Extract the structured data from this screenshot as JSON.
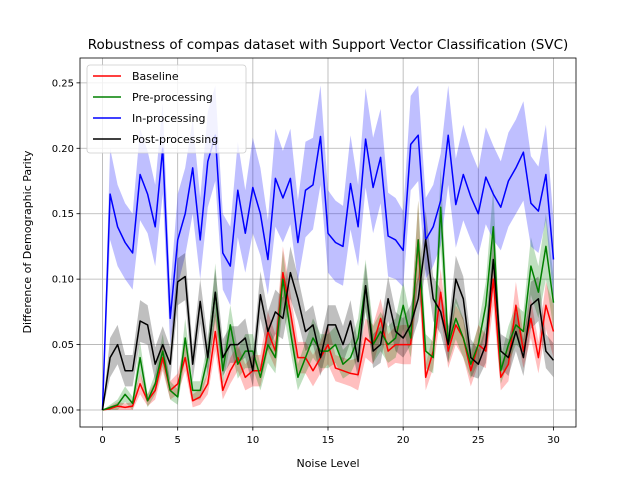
{
  "chart_data": {
    "type": "line",
    "title": "Robustness of compas dataset with Support Vector Classification (SVC)",
    "xlabel": "Noise Level",
    "ylabel": "Difference of Demographic Parity",
    "xlim": [
      -1.5,
      31.5
    ],
    "ylim": [
      -0.013,
      0.269
    ],
    "xticks": [
      0,
      5,
      10,
      15,
      20,
      25,
      30
    ],
    "xtick_labels": [
      "0",
      "5",
      "10",
      "15",
      "20",
      "25",
      "30"
    ],
    "yticks": [
      0.0,
      0.05,
      0.1,
      0.15,
      0.2,
      0.25
    ],
    "ytick_labels": [
      "0.00",
      "0.05",
      "0.10",
      "0.15",
      "0.20",
      "0.25"
    ],
    "grid": true,
    "legend_position": "top-left",
    "x": [
      0,
      0.5,
      1,
      1.5,
      2,
      2.5,
      3,
      3.5,
      4,
      4.5,
      5,
      5.5,
      6,
      6.5,
      7,
      7.5,
      8,
      8.5,
      9,
      9.5,
      10,
      10.5,
      11,
      11.5,
      12,
      12.5,
      13,
      13.5,
      14,
      14.5,
      15,
      15.5,
      16,
      16.5,
      17,
      17.5,
      18,
      18.5,
      19,
      19.5,
      20,
      20.5,
      21,
      21.5,
      22,
      22.5,
      23,
      23.5,
      24,
      24.5,
      25,
      25.5,
      26,
      26.5,
      27,
      27.5,
      28,
      28.5,
      29,
      29.5,
      30
    ],
    "series": [
      {
        "name": "Baseline",
        "color": "#ff0000",
        "values": [
          0.0,
          0.001,
          0.003,
          0.002,
          0.003,
          0.02,
          0.007,
          0.015,
          0.04,
          0.015,
          0.02,
          0.04,
          0.007,
          0.01,
          0.02,
          0.06,
          0.015,
          0.03,
          0.04,
          0.025,
          0.03,
          0.03,
          0.06,
          0.045,
          0.105,
          0.075,
          0.04,
          0.04,
          0.03,
          0.04,
          0.05,
          0.032,
          0.03,
          0.028,
          0.027,
          0.055,
          0.05,
          0.07,
          0.045,
          0.05,
          0.05,
          0.05,
          0.13,
          0.025,
          0.045,
          0.09,
          0.045,
          0.065,
          0.055,
          0.03,
          0.05,
          0.045,
          0.1,
          0.025,
          0.035,
          0.08,
          0.045,
          0.07,
          0.04,
          0.08,
          0.06
        ],
        "lower": [
          0.0,
          0.0,
          0.0,
          0.0,
          0.0,
          0.012,
          0.003,
          0.008,
          0.03,
          0.008,
          0.012,
          0.03,
          0.002,
          0.004,
          0.012,
          0.045,
          0.008,
          0.02,
          0.03,
          0.015,
          0.018,
          0.018,
          0.045,
          0.032,
          0.085,
          0.06,
          0.028,
          0.028,
          0.018,
          0.028,
          0.035,
          0.022,
          0.02,
          0.018,
          0.015,
          0.04,
          0.035,
          0.055,
          0.032,
          0.036,
          0.035,
          0.035,
          0.1,
          0.015,
          0.032,
          0.072,
          0.032,
          0.05,
          0.04,
          0.018,
          0.035,
          0.032,
          0.08,
          0.015,
          0.022,
          0.062,
          0.032,
          0.055,
          0.028,
          0.062,
          0.04
        ],
        "upper": [
          0.0,
          0.003,
          0.006,
          0.005,
          0.006,
          0.028,
          0.012,
          0.022,
          0.05,
          0.022,
          0.028,
          0.05,
          0.012,
          0.016,
          0.028,
          0.075,
          0.022,
          0.04,
          0.05,
          0.035,
          0.042,
          0.042,
          0.075,
          0.058,
          0.125,
          0.09,
          0.052,
          0.052,
          0.042,
          0.052,
          0.065,
          0.042,
          0.04,
          0.038,
          0.04,
          0.07,
          0.065,
          0.085,
          0.058,
          0.064,
          0.065,
          0.065,
          0.16,
          0.035,
          0.058,
          0.108,
          0.058,
          0.08,
          0.07,
          0.042,
          0.065,
          0.058,
          0.12,
          0.035,
          0.048,
          0.098,
          0.058,
          0.085,
          0.052,
          0.098,
          0.08
        ]
      },
      {
        "name": "Pre-processing",
        "color": "#008000",
        "values": [
          0.0,
          0.002,
          0.004,
          0.012,
          0.005,
          0.04,
          0.007,
          0.02,
          0.045,
          0.015,
          0.01,
          0.055,
          0.015,
          0.015,
          0.04,
          0.09,
          0.03,
          0.065,
          0.035,
          0.045,
          0.045,
          0.025,
          0.05,
          0.04,
          0.1,
          0.06,
          0.025,
          0.04,
          0.055,
          0.045,
          0.045,
          0.05,
          0.035,
          0.04,
          0.055,
          0.095,
          0.05,
          0.06,
          0.05,
          0.055,
          0.08,
          0.055,
          0.13,
          0.045,
          0.04,
          0.155,
          0.05,
          0.07,
          0.055,
          0.035,
          0.05,
          0.08,
          0.14,
          0.03,
          0.05,
          0.065,
          0.06,
          0.11,
          0.09,
          0.125,
          0.082
        ],
        "lower": [
          0.0,
          0.0,
          0.0,
          0.006,
          0.0,
          0.028,
          0.002,
          0.012,
          0.033,
          0.008,
          0.004,
          0.04,
          0.008,
          0.008,
          0.028,
          0.068,
          0.02,
          0.05,
          0.024,
          0.032,
          0.032,
          0.015,
          0.036,
          0.028,
          0.078,
          0.045,
          0.015,
          0.028,
          0.04,
          0.032,
          0.032,
          0.036,
          0.024,
          0.028,
          0.04,
          0.075,
          0.036,
          0.045,
          0.036,
          0.04,
          0.062,
          0.04,
          0.1,
          0.032,
          0.028,
          0.125,
          0.036,
          0.054,
          0.04,
          0.024,
          0.036,
          0.062,
          0.11,
          0.02,
          0.036,
          0.05,
          0.045,
          0.088,
          0.07,
          0.1,
          0.062
        ],
        "upper": [
          0.0,
          0.004,
          0.008,
          0.018,
          0.01,
          0.052,
          0.012,
          0.028,
          0.058,
          0.022,
          0.016,
          0.07,
          0.022,
          0.022,
          0.052,
          0.112,
          0.04,
          0.08,
          0.046,
          0.058,
          0.058,
          0.035,
          0.064,
          0.052,
          0.122,
          0.075,
          0.035,
          0.052,
          0.07,
          0.058,
          0.058,
          0.064,
          0.046,
          0.052,
          0.07,
          0.115,
          0.064,
          0.075,
          0.064,
          0.07,
          0.098,
          0.07,
          0.16,
          0.058,
          0.052,
          0.185,
          0.064,
          0.086,
          0.07,
          0.046,
          0.064,
          0.098,
          0.17,
          0.04,
          0.064,
          0.08,
          0.075,
          0.132,
          0.11,
          0.15,
          0.102
        ]
      },
      {
        "name": "In-processing",
        "color": "#0000ff",
        "values": [
          0.0,
          0.165,
          0.14,
          0.128,
          0.12,
          0.18,
          0.165,
          0.14,
          0.2,
          0.07,
          0.13,
          0.15,
          0.185,
          0.13,
          0.19,
          0.21,
          0.12,
          0.11,
          0.168,
          0.135,
          0.17,
          0.15,
          0.115,
          0.177,
          0.162,
          0.177,
          0.128,
          0.168,
          0.172,
          0.209,
          0.135,
          0.128,
          0.125,
          0.173,
          0.14,
          0.207,
          0.17,
          0.193,
          0.133,
          0.13,
          0.122,
          0.203,
          0.21,
          0.13,
          0.14,
          0.16,
          0.21,
          0.157,
          0.18,
          0.163,
          0.15,
          0.178,
          0.165,
          0.155,
          0.175,
          0.185,
          0.197,
          0.158,
          0.152,
          0.18,
          0.115
        ],
        "lower": [
          0.0,
          0.13,
          0.11,
          0.1,
          0.092,
          0.145,
          0.135,
          0.11,
          0.165,
          0.05,
          0.095,
          0.118,
          0.15,
          0.1,
          0.155,
          0.175,
          0.092,
          0.08,
          0.132,
          0.105,
          0.135,
          0.118,
          0.088,
          0.14,
          0.128,
          0.142,
          0.098,
          0.132,
          0.138,
          0.172,
          0.105,
          0.098,
          0.095,
          0.138,
          0.11,
          0.17,
          0.135,
          0.158,
          0.102,
          0.1,
          0.094,
          0.168,
          0.175,
          0.1,
          0.11,
          0.126,
          0.172,
          0.124,
          0.145,
          0.13,
          0.118,
          0.142,
          0.13,
          0.122,
          0.14,
          0.15,
          0.16,
          0.125,
          0.12,
          0.145,
          0.085
        ],
        "upper": [
          0.0,
          0.2,
          0.172,
          0.158,
          0.15,
          0.215,
          0.198,
          0.172,
          0.235,
          0.092,
          0.165,
          0.185,
          0.222,
          0.162,
          0.228,
          0.248,
          0.15,
          0.14,
          0.205,
          0.168,
          0.208,
          0.185,
          0.145,
          0.215,
          0.198,
          0.215,
          0.16,
          0.205,
          0.208,
          0.248,
          0.168,
          0.16,
          0.156,
          0.21,
          0.172,
          0.246,
          0.208,
          0.23,
          0.166,
          0.162,
          0.152,
          0.24,
          0.248,
          0.162,
          0.172,
          0.196,
          0.248,
          0.192,
          0.218,
          0.198,
          0.184,
          0.216,
          0.202,
          0.19,
          0.212,
          0.222,
          0.236,
          0.194,
          0.186,
          0.218,
          0.145
        ]
      },
      {
        "name": "Post-processing",
        "color": "#000000",
        "values": [
          0.0,
          0.04,
          0.05,
          0.03,
          0.03,
          0.068,
          0.065,
          0.035,
          0.05,
          0.035,
          0.098,
          0.102,
          0.035,
          0.083,
          0.04,
          0.09,
          0.04,
          0.05,
          0.05,
          0.055,
          0.03,
          0.088,
          0.06,
          0.075,
          0.07,
          0.105,
          0.085,
          0.06,
          0.065,
          0.04,
          0.065,
          0.065,
          0.05,
          0.068,
          0.037,
          0.095,
          0.045,
          0.05,
          0.085,
          0.06,
          0.055,
          0.065,
          0.085,
          0.13,
          0.085,
          0.075,
          0.05,
          0.1,
          0.085,
          0.04,
          0.035,
          0.05,
          0.115,
          0.045,
          0.04,
          0.06,
          0.04,
          0.08,
          0.085,
          0.045,
          0.038
        ],
        "lower": [
          0.0,
          0.025,
          0.035,
          0.018,
          0.018,
          0.052,
          0.05,
          0.022,
          0.036,
          0.022,
          0.08,
          0.084,
          0.022,
          0.066,
          0.026,
          0.072,
          0.026,
          0.036,
          0.036,
          0.04,
          0.018,
          0.07,
          0.045,
          0.058,
          0.054,
          0.085,
          0.068,
          0.045,
          0.05,
          0.026,
          0.05,
          0.05,
          0.036,
          0.052,
          0.024,
          0.078,
          0.032,
          0.036,
          0.068,
          0.045,
          0.04,
          0.05,
          0.068,
          0.108,
          0.068,
          0.058,
          0.036,
          0.082,
          0.068,
          0.026,
          0.024,
          0.036,
          0.095,
          0.032,
          0.026,
          0.045,
          0.026,
          0.062,
          0.068,
          0.032,
          0.025
        ],
        "upper": [
          0.0,
          0.055,
          0.065,
          0.042,
          0.042,
          0.084,
          0.08,
          0.048,
          0.064,
          0.048,
          0.116,
          0.12,
          0.048,
          0.1,
          0.054,
          0.108,
          0.054,
          0.064,
          0.064,
          0.07,
          0.042,
          0.106,
          0.075,
          0.092,
          0.086,
          0.125,
          0.102,
          0.075,
          0.08,
          0.054,
          0.08,
          0.08,
          0.064,
          0.084,
          0.05,
          0.112,
          0.058,
          0.064,
          0.102,
          0.075,
          0.07,
          0.08,
          0.102,
          0.152,
          0.102,
          0.092,
          0.064,
          0.118,
          0.102,
          0.054,
          0.046,
          0.064,
          0.135,
          0.058,
          0.054,
          0.075,
          0.054,
          0.098,
          0.102,
          0.058,
          0.051
        ]
      }
    ]
  }
}
